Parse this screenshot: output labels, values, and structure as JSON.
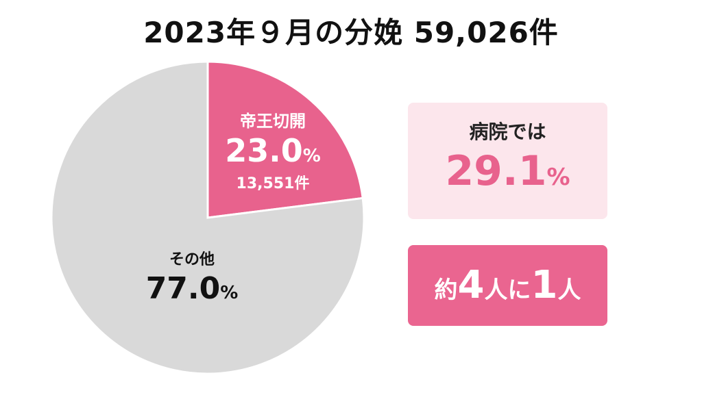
{
  "title": "2023年９月の分娩 59,026件",
  "chart_data": {
    "type": "pie",
    "title": "2023年９月の分娩 59,026件",
    "slices": [
      {
        "label": "帝王切開",
        "percent": 23.0,
        "count_label": "13,551件",
        "color": "#e8628d"
      },
      {
        "label": "その他",
        "percent": 77.0,
        "color": "#d9d9d9"
      }
    ]
  },
  "labels": {
    "cesarean_name": "帝王切開",
    "cesarean_pct": "23.0",
    "cesarean_count": "13,551件",
    "other_name": "その他",
    "other_pct": "77.0",
    "pct_unit": "%"
  },
  "hospital": {
    "label": "病院では",
    "value": "29.1",
    "unit": "%"
  },
  "ratio": {
    "prefix": "約",
    "num1": "4",
    "mid": "人に",
    "num2": "1",
    "suffix": "人"
  },
  "colors": {
    "accent": "#e8628d",
    "accent_dark": "#ea6590",
    "pale_pink": "#fce6ec",
    "gray": "#d9d9d9"
  }
}
